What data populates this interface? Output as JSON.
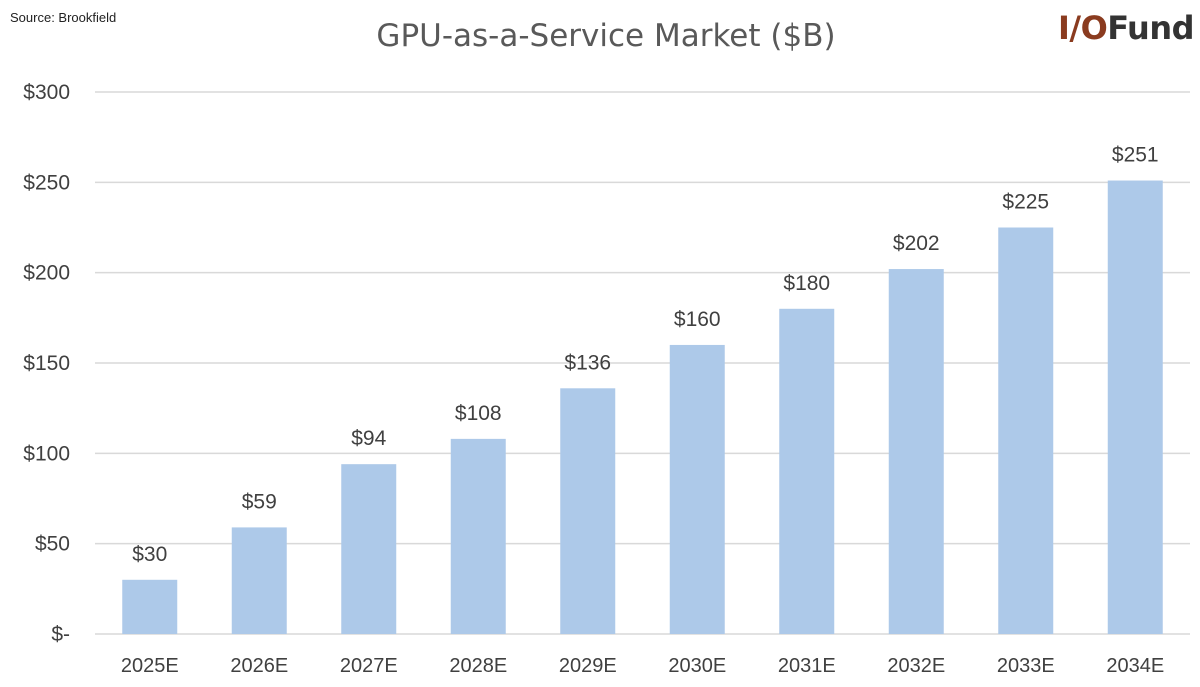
{
  "source_note": "Source: Brookfield",
  "logo": {
    "part1": "I/O",
    "part2": "Fund"
  },
  "chart_data": {
    "type": "bar",
    "title": "GPU-as-a-Service Market ($B)",
    "xlabel": "",
    "ylabel": "",
    "categories": [
      "2025E",
      "2026E",
      "2027E",
      "2028E",
      "2029E",
      "2030E",
      "2031E",
      "2032E",
      "2033E",
      "2034E"
    ],
    "values": [
      30,
      59,
      94,
      108,
      136,
      160,
      180,
      202,
      225,
      251
    ],
    "data_labels": [
      "$30",
      "$59",
      "$94",
      "$108",
      "$136",
      "$160",
      "$180",
      "$202",
      "$225",
      "$251"
    ],
    "ylim": [
      0,
      300
    ],
    "yticks": [
      0,
      50,
      100,
      150,
      200,
      250,
      300
    ],
    "ytick_labels": [
      "$-",
      "$50",
      "$100",
      "$150",
      "$200",
      "$250",
      "$300"
    ],
    "grid": true,
    "legend": "none",
    "bar_color": "#adc9e9"
  }
}
